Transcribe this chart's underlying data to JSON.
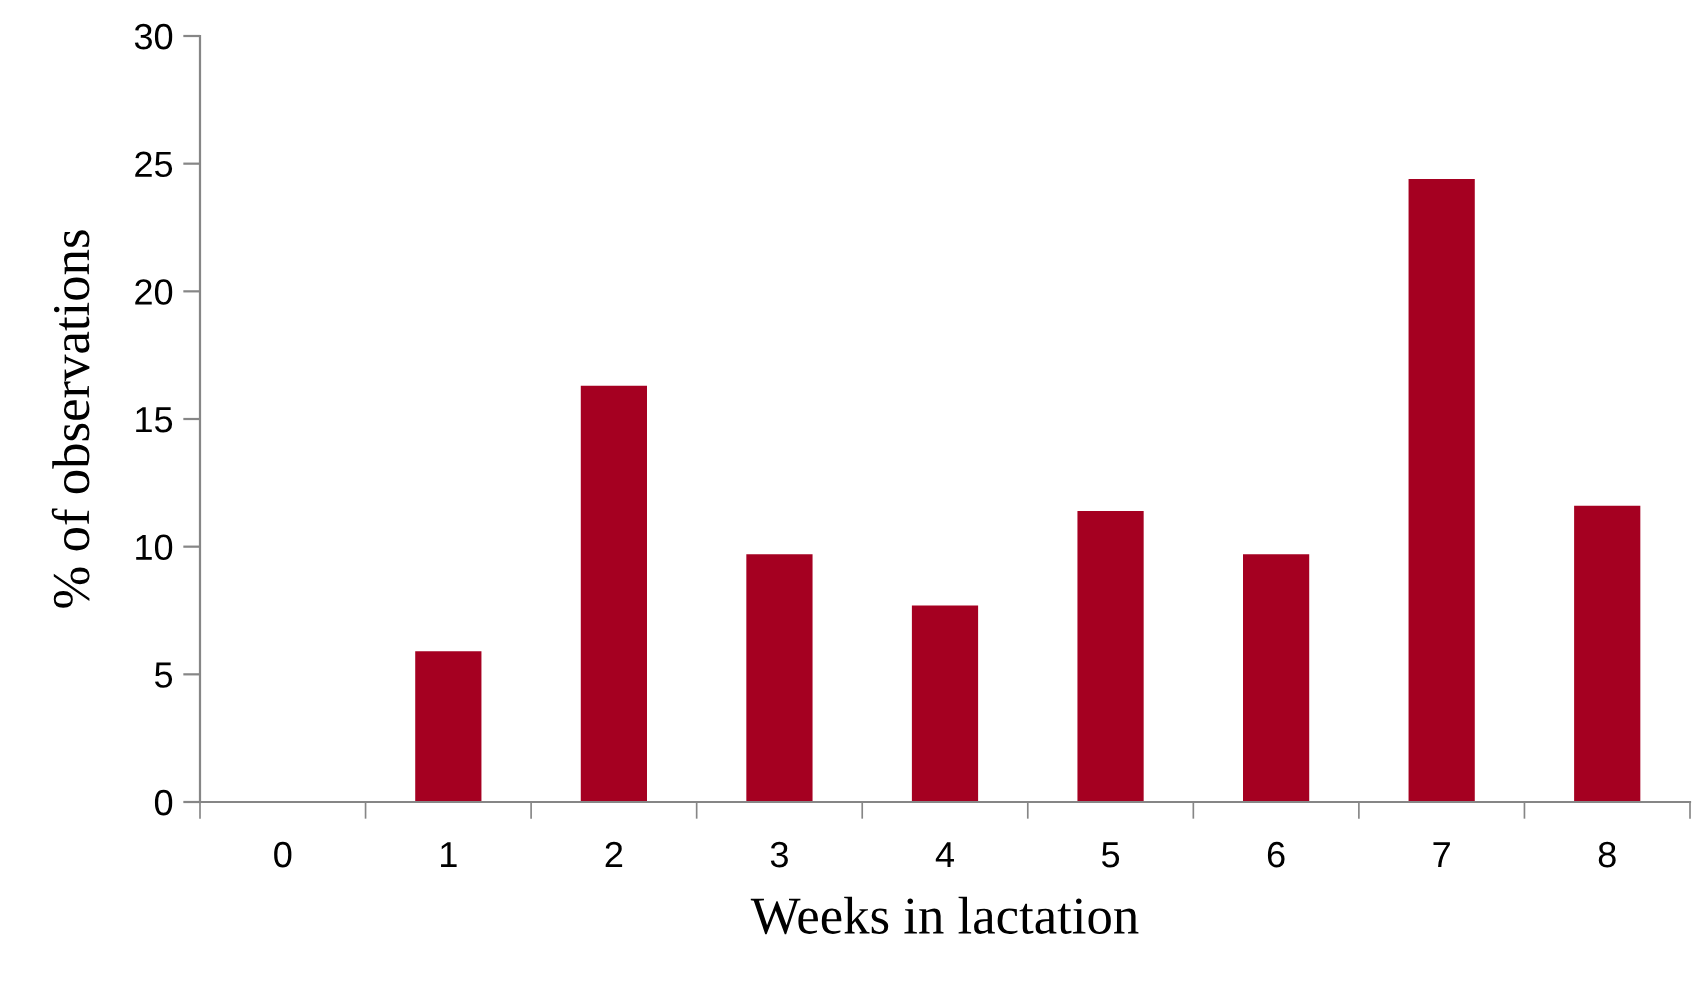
{
  "chart_data": {
    "type": "bar",
    "xlabel": "Weeks in lactation",
    "ylabel": "% of observations",
    "categories": [
      "0",
      "1",
      "2",
      "3",
      "4",
      "5",
      "6",
      "7",
      "8"
    ],
    "values": [
      0,
      5.9,
      16.3,
      9.7,
      7.7,
      11.4,
      9.7,
      24.4,
      11.6
    ],
    "color": "#a50021",
    "ylim": [
      0,
      30
    ],
    "yticks": [
      0,
      5,
      10,
      15,
      20,
      25,
      30
    ],
    "grid": false,
    "legend": false
  }
}
